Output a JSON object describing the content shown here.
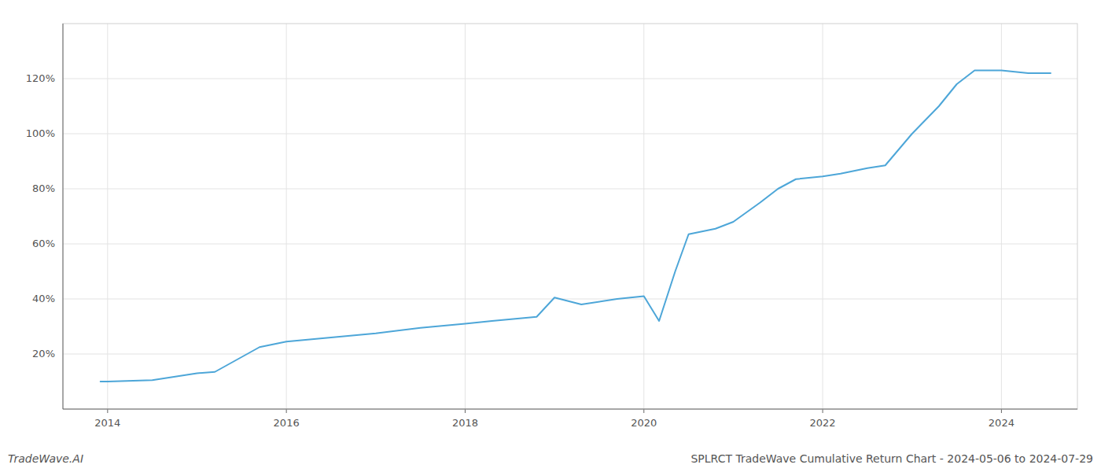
{
  "chart_data": {
    "type": "line",
    "title": "SPLRCT TradeWave Cumulative Return Chart - 2024-05-06 to 2024-07-29",
    "annotations": [
      "TradeWave.AI"
    ],
    "color": "#4da6d8",
    "x": [
      2013.92,
      2014.0,
      2014.5,
      2015.0,
      2015.2,
      2015.7,
      2016.0,
      2016.5,
      2017.0,
      2017.5,
      2018.0,
      2018.3,
      2018.8,
      2019.0,
      2019.3,
      2019.7,
      2020.0,
      2020.17,
      2020.35,
      2020.5,
      2020.8,
      2021.0,
      2021.3,
      2021.5,
      2021.7,
      2022.0,
      2022.2,
      2022.5,
      2022.7,
      2023.0,
      2023.3,
      2023.5,
      2023.7,
      2024.0,
      2024.3,
      2024.55
    ],
    "values": [
      10.0,
      10.0,
      10.5,
      13.0,
      13.5,
      22.5,
      24.5,
      26.0,
      27.5,
      29.5,
      31.0,
      32.0,
      33.5,
      40.5,
      38.0,
      40.0,
      41.0,
      32.0,
      50.0,
      63.5,
      65.5,
      68.0,
      75.0,
      80.0,
      83.5,
      84.5,
      85.5,
      87.5,
      88.5,
      100.0,
      110.0,
      118.0,
      123.0,
      123.0,
      122.0,
      122.0
    ],
    "xlim": [
      2013.5,
      2024.85
    ],
    "ylim": [
      0,
      140
    ],
    "xticks": [
      2014,
      2016,
      2018,
      2020,
      2022,
      2024
    ],
    "yticks": [
      {
        "value": 20,
        "label": "20%"
      },
      {
        "value": 40,
        "label": "40%"
      },
      {
        "value": 60,
        "label": "60%"
      },
      {
        "value": 80,
        "label": "80%"
      },
      {
        "value": 100,
        "label": "100%"
      },
      {
        "value": 120,
        "label": "120%"
      }
    ],
    "grid": true
  }
}
